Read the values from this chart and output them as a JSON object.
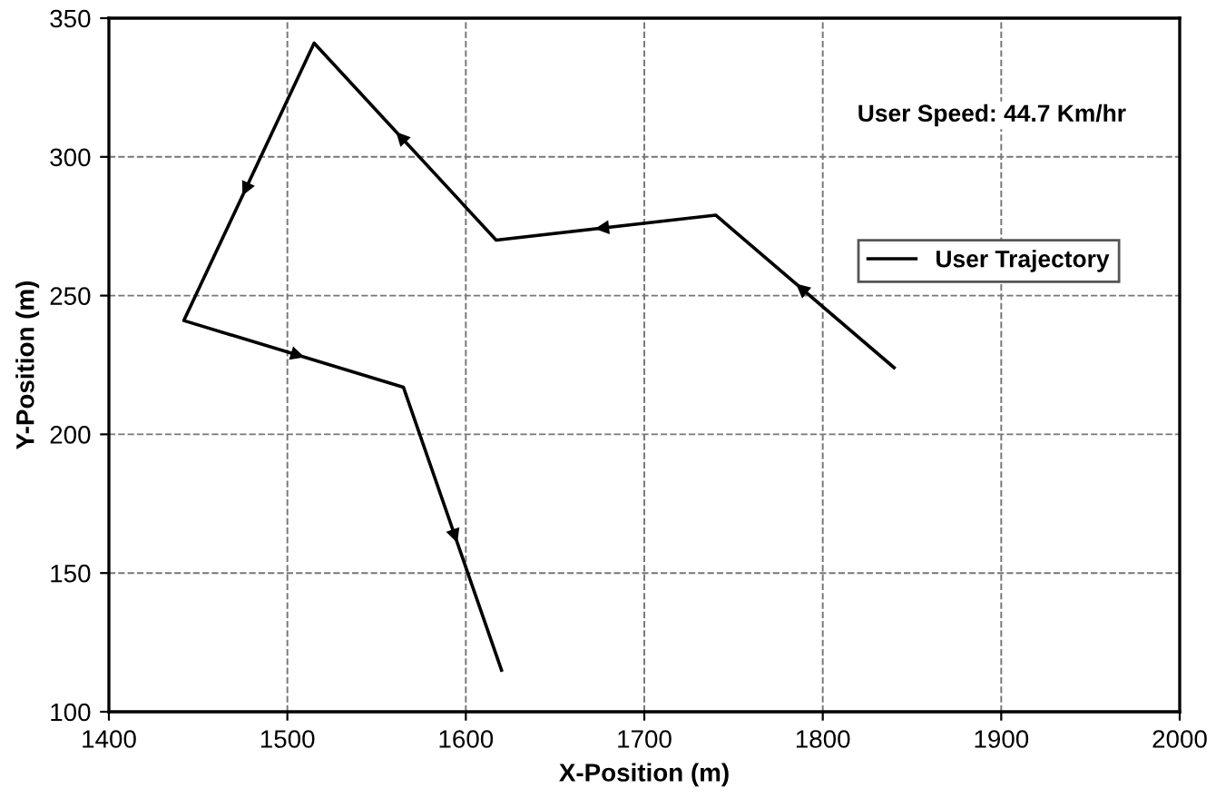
{
  "chart_data": {
    "type": "line",
    "xlabel": "X-Position (m)",
    "ylabel": "Y-Position (m)",
    "series": [
      {
        "name": "User Trajectory",
        "color": "#000000",
        "x": [
          1840,
          1740,
          1617,
          1515,
          1442,
          1565,
          1620
        ],
        "values": [
          224,
          279,
          270,
          341,
          241,
          217,
          115
        ]
      }
    ],
    "xlim": [
      1400,
      2000
    ],
    "xticks": [
      1400,
      1500,
      1600,
      1700,
      1800,
      1900,
      2000
    ],
    "ylim": [
      100,
      350
    ],
    "yticks": [
      100,
      150,
      200,
      250,
      300,
      350
    ],
    "grid": true,
    "legend": "right",
    "marker": "none",
    "line_style": "solid",
    "annotations": [
      "User Speed: 44.7 Km/hr"
    ]
  }
}
